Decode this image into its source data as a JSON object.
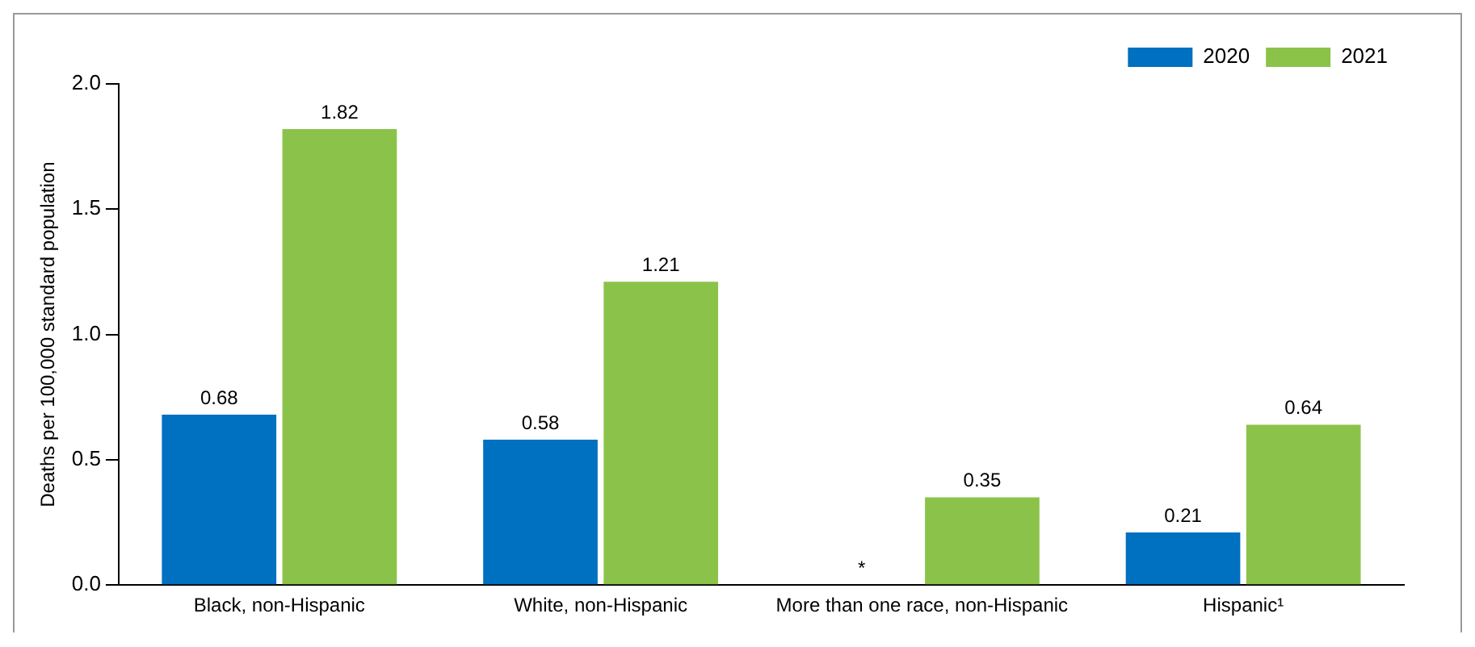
{
  "chart_data": {
    "type": "bar",
    "ylabel": "Deaths per 100,000 standard population",
    "categories": [
      "Black, non-Hispanic",
      "White, non-Hispanic",
      "More than one race, non-Hispanic",
      "Hispanic¹"
    ],
    "series": [
      {
        "name": "2020",
        "color": "#0070c0",
        "values": [
          0.68,
          0.58,
          null,
          0.21
        ],
        "value_labels": [
          "0.68",
          "0.58",
          "*",
          "0.21"
        ]
      },
      {
        "name": "2021",
        "color": "#8bc34a",
        "values": [
          1.82,
          1.21,
          0.35,
          0.64
        ],
        "value_labels": [
          "1.82",
          "1.21",
          "0.35",
          "0.64"
        ]
      }
    ],
    "ylim": [
      0,
      2
    ],
    "yticks": [
      {
        "value": 0,
        "label": "0.0"
      },
      0.5,
      {
        "value": 1,
        "label": "1.0"
      },
      1.5,
      {
        "value": 2,
        "label": "2.0"
      }
    ],
    "grid": false,
    "legend": "top right"
  }
}
